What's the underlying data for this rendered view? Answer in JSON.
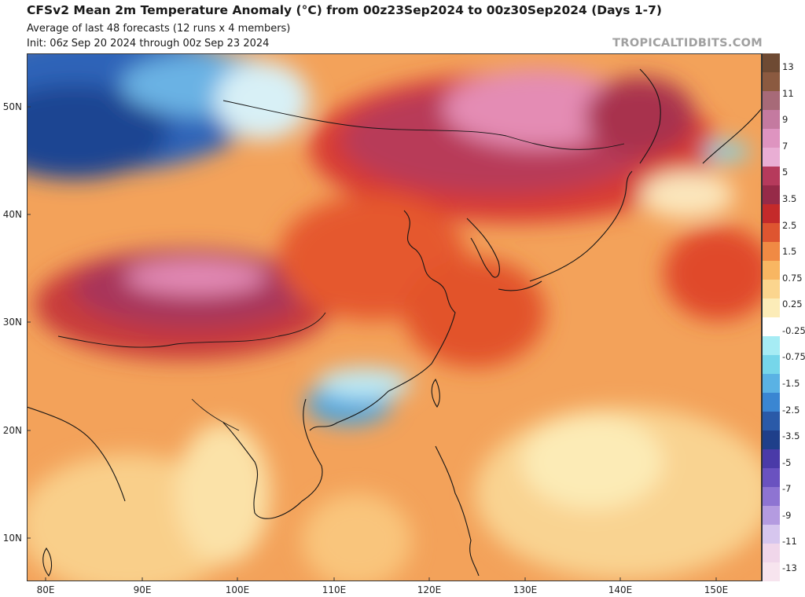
{
  "header": {
    "title": "CFSv2 Mean 2m Temperature Anomaly (°C) from 00z23Sep2024 to 00z30Sep2024 (Days 1-7)",
    "subtitle1": "Average of last 48 forecasts (12 runs x 4 members)",
    "subtitle2": "Init: 06z Sep 20 2024 through 00z Sep 23 2024",
    "brand": "TROPICALTIDBITS.COM"
  },
  "map": {
    "lon_ticks": [
      "80E",
      "90E",
      "100E",
      "110E",
      "120E",
      "130E",
      "140E",
      "150E"
    ],
    "lat_ticks": [
      "50N",
      "40N",
      "30N",
      "20N",
      "10N"
    ],
    "lon_range": [
      77,
      155
    ],
    "lat_range": [
      6,
      55
    ]
  },
  "colorbar": {
    "labels": [
      "13",
      "11",
      "9",
      "7",
      "5",
      "3.5",
      "2.5",
      "1.5",
      "0.75",
      "0.25",
      "-0.25",
      "-0.75",
      "-1.5",
      "-2.5",
      "-3.5",
      "-5",
      "-7",
      "-9",
      "-11",
      "-13"
    ],
    "colors": [
      "#6e4a33",
      "#8b5a40",
      "#a76a78",
      "#c47aa0",
      "#de94c0",
      "#e9aed4",
      "#b63a5c",
      "#962a48",
      "#c42a2a",
      "#de5530",
      "#f08a44",
      "#f8b662",
      "#fbd58e",
      "#fcecb8",
      "#ffffff",
      "#a6ecf4",
      "#76d6ea",
      "#5ab2e4",
      "#3a86d2",
      "#2a5aa8",
      "#1f3f8a",
      "#4a3aa8",
      "#6a52c0",
      "#8e74d2",
      "#b49be0",
      "#d6c6ee",
      "#f0d6ea",
      "#f7e4ee"
    ]
  }
}
